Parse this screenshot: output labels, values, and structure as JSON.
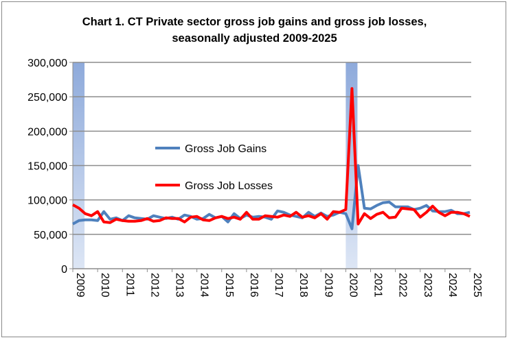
{
  "chart_data": {
    "type": "line",
    "title_line1": "Chart 1. CT Private sector gross job gains and gross job losses,",
    "title_line2": "seasonally adjusted 2009-2025",
    "xlabel": "",
    "ylabel": "",
    "ylim": [
      0,
      300000
    ],
    "yticks": [
      "0",
      "50,000",
      "100,000",
      "150,000",
      "200,000",
      "250,000",
      "300,000"
    ],
    "xticks": [
      "2009",
      "2010",
      "2011",
      "2012",
      "2013",
      "2014",
      "2015",
      "2016",
      "2017",
      "2018",
      "2019",
      "2020",
      "2021",
      "2022",
      "2023",
      "2024",
      "2025"
    ],
    "x_frequency": "quarterly, 2009 Q1 to 2025 Q1",
    "grid": "horizontal",
    "legend": "inside-left",
    "recession_shading": [
      [
        "2009 Q1",
        "2009 Q2"
      ],
      [
        "2020 Q1",
        "2020 Q2"
      ]
    ],
    "recession_color": "#8eaadb",
    "series": [
      {
        "name": "Gross Job Gains",
        "color": "#4f81bd",
        "values": [
          65000,
          70000,
          71000,
          71000,
          70000,
          83000,
          72000,
          74000,
          70000,
          77000,
          74000,
          73000,
          72000,
          77000,
          75000,
          73000,
          75000,
          72000,
          78000,
          76000,
          72000,
          73000,
          79000,
          74000,
          76000,
          68000,
          80000,
          73000,
          78000,
          75000,
          76000,
          75000,
          72000,
          84000,
          82000,
          78000,
          76000,
          74000,
          82000,
          76000,
          81000,
          76000,
          78000,
          82000,
          80000,
          58000,
          150000,
          88000,
          87000,
          92000,
          96000,
          97000,
          90000,
          90000,
          90000,
          86000,
          88000,
          92000,
          84000,
          83000,
          83000,
          85000,
          80000,
          80000,
          82000
        ]
      },
      {
        "name": "Gross Job Losses",
        "color": "#ff0000",
        "values": [
          93000,
          88000,
          80000,
          77000,
          83000,
          68000,
          67000,
          72000,
          70000,
          69000,
          69000,
          70000,
          73000,
          69000,
          70000,
          74000,
          73000,
          73000,
          68000,
          75000,
          76000,
          71000,
          70000,
          74000,
          76000,
          73000,
          75000,
          72000,
          82000,
          72000,
          72000,
          77000,
          76000,
          75000,
          78000,
          76000,
          82000,
          75000,
          77000,
          74000,
          80000,
          72000,
          83000,
          82000,
          86000,
          262000,
          65000,
          80000,
          73000,
          79000,
          82000,
          74000,
          75000,
          88000,
          87000,
          86000,
          75000,
          82000,
          91000,
          82000,
          77000,
          82000,
          82000,
          80000,
          76000
        ]
      }
    ]
  }
}
